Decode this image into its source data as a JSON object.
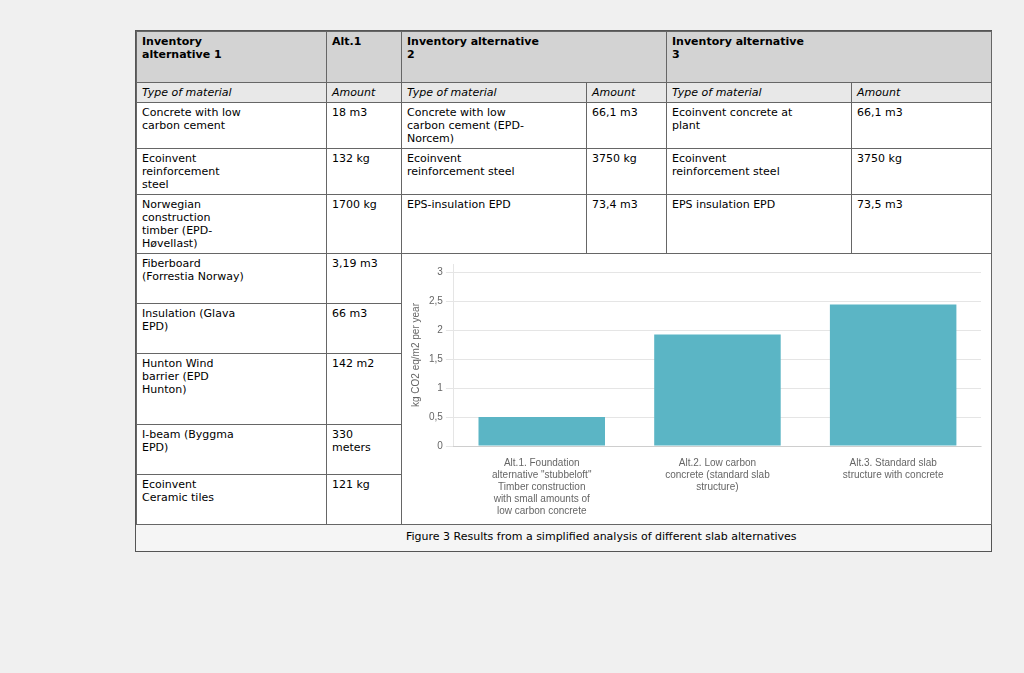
{
  "chart_data": {
    "type": "bar",
    "categories": [
      "Alt.1. Foundation\nalternative \"stubbeloft\"\nTimber construction\nwith small amounts of\nlow carbon concrete",
      "Alt.2. Low carbon\nconcrete (standard slab\nstructure)",
      "Alt.3. Standard slab\nstructure with concrete"
    ],
    "values": [
      0.5,
      1.93,
      2.45
    ],
    "color": "#5bb5c5",
    "ylabel": "kg CO2 eq/m2 per year",
    "ylim": [
      0,
      3.15
    ],
    "yticks": [
      0,
      {
        "value": 0.5,
        "label": "0,5"
      },
      1,
      {
        "value": 1.5,
        "label": "1,5"
      },
      2,
      {
        "value": 2.5,
        "label": "2,5"
      },
      3
    ],
    "grid": true,
    "annotations": [
      "Figure 3 Results from a simplified analysis of different slab alternatives"
    ]
  },
  "table": {
    "headers": [
      "Inventory\nalternative 1",
      "Alt.1",
      "Inventory alternative\n2",
      "Inventory alternative\n3"
    ],
    "sub_headers": [
      "Type of material",
      "Amount",
      "Type of material",
      "Amount",
      "Type of material",
      "Amount"
    ],
    "rows": [
      [
        "Concrete with low\ncarbon cement",
        "18 m3",
        "Concrete with low\ncarbon cement (EPD-\nNorcem)",
        "66,1 m3",
        "Ecoinvent concrete at\nplant",
        "66,1 m3"
      ],
      [
        "Ecoinvent\nreinforcement\nsteel",
        "132 kg",
        "Ecoinvent\nreinforcement steel",
        "3750 kg",
        "Ecoinvent\nreinforcement steel",
        "3750 kg"
      ],
      [
        "Norwegian\nconstruction\ntimber (EPD-\nHøvellast)",
        "1700 kg",
        "EPS-insulation EPD",
        "73,4 m3",
        "EPS insulation EPD",
        "73,5 m3"
      ],
      [
        "Fiberboard\n(Forrestia Norway)",
        "3,19 m3"
      ],
      [
        "Insulation  (Glava\nEPD)",
        "66 m3"
      ],
      [
        "Hunton Wind\nbarrier (EPD\nHunton)",
        "142 m2"
      ],
      [
        "I-beam (Byggma\nEPD)",
        "330\nmeters"
      ],
      [
        "Ecoinvent\nCeramic tiles",
        "121 kg"
      ]
    ]
  }
}
